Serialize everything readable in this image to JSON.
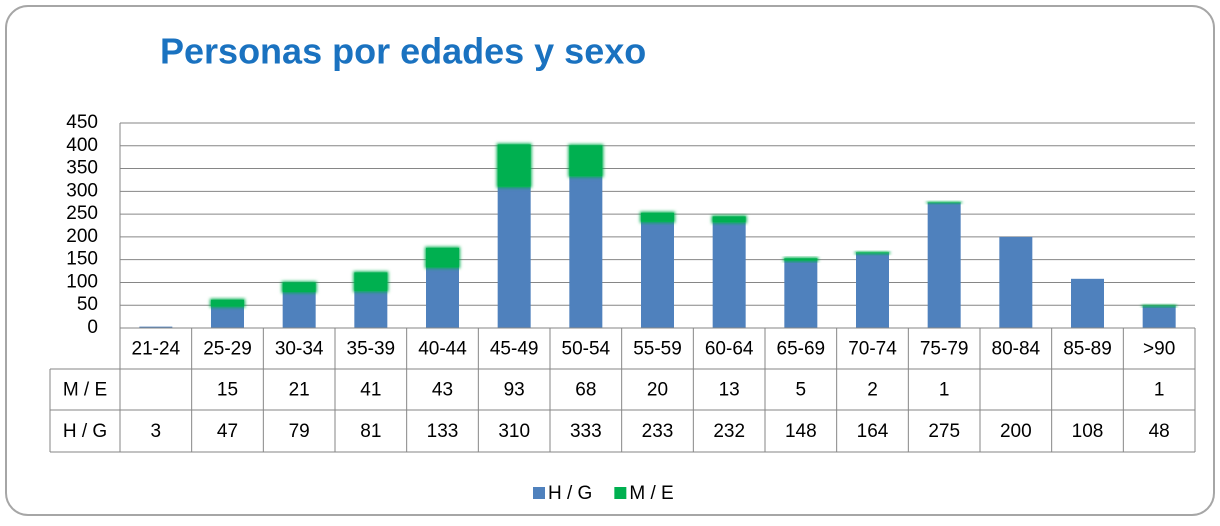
{
  "chart_data": {
    "type": "stacked_bar",
    "title": "Personas por edades y sexo",
    "categories": [
      "21-24",
      "25-29",
      "30-34",
      "35-39",
      "40-44",
      "45-49",
      "50-54",
      "55-59",
      "60-64",
      "65-69",
      "70-74",
      "75-79",
      "80-84",
      "85-89",
      ">90"
    ],
    "series": [
      {
        "name": "H / G",
        "color": "#4f81bd",
        "values": [
          3,
          47,
          79,
          81,
          133,
          310,
          333,
          233,
          232,
          148,
          164,
          275,
          200,
          108,
          48
        ]
      },
      {
        "name": "M / E",
        "color": "#00b050",
        "values": [
          null,
          15,
          21,
          41,
          43,
          93,
          68,
          20,
          13,
          5,
          2,
          1,
          null,
          null,
          1
        ]
      }
    ],
    "ylim": [
      0,
      450
    ],
    "yticks": [
      0,
      50,
      100,
      150,
      200,
      250,
      300,
      350,
      400,
      450
    ],
    "grid": true,
    "legend": "bottom"
  }
}
